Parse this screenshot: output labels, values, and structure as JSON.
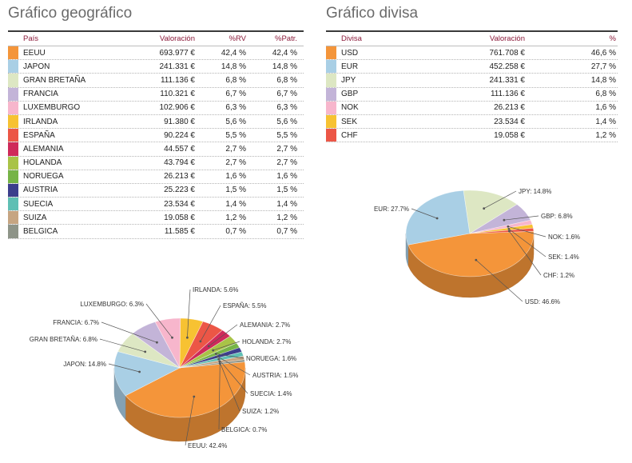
{
  "geo": {
    "title": "Gráfico geográfico",
    "headers": {
      "name": "País",
      "val": "Valoración",
      "rv": "%RV",
      "patr": "%Patr."
    },
    "rows": [
      {
        "name": "EEUU",
        "val": "693.977 €",
        "rv": "42,4 %",
        "patr": "42,4 %",
        "color": "#f4953a"
      },
      {
        "name": "JAPON",
        "val": "241.331 €",
        "rv": "14,8 %",
        "patr": "14,8 %",
        "color": "#a9cfe5"
      },
      {
        "name": "GRAN BRETAÑA",
        "val": "111.136 €",
        "rv": "6,8 %",
        "patr": "6,8 %",
        "color": "#dde7c3"
      },
      {
        "name": "FRANCIA",
        "val": "110.321 €",
        "rv": "6,7 %",
        "patr": "6,7 %",
        "color": "#c3b4d8"
      },
      {
        "name": "LUXEMBURGO",
        "val": "102.906 €",
        "rv": "6,3 %",
        "patr": "6,3 %",
        "color": "#f7b6cc"
      },
      {
        "name": "IRLANDA",
        "val": "91.380 €",
        "rv": "5,6 %",
        "patr": "5,6 %",
        "color": "#f7c232"
      },
      {
        "name": "ESPAÑA",
        "val": "90.224 €",
        "rv": "5,5 %",
        "patr": "5,5 %",
        "color": "#ec5646"
      },
      {
        "name": "ALEMANIA",
        "val": "44.557 €",
        "rv": "2,7 %",
        "patr": "2,7 %",
        "color": "#cf2a5a"
      },
      {
        "name": "HOLANDA",
        "val": "43.794 €",
        "rv": "2,7 %",
        "patr": "2,7 %",
        "color": "#a9c347"
      },
      {
        "name": "NORUEGA",
        "val": "26.213 €",
        "rv": "1,6 %",
        "patr": "1,6 %",
        "color": "#76b447"
      },
      {
        "name": "AUSTRIA",
        "val": "25.223 €",
        "rv": "1,5 %",
        "patr": "1,5 %",
        "color": "#3c3e8c"
      },
      {
        "name": "SUECIA",
        "val": "23.534 €",
        "rv": "1,4 %",
        "patr": "1,4 %",
        "color": "#5fbfb4"
      },
      {
        "name": "SUIZA",
        "val": "19.058 €",
        "rv": "1,2 %",
        "patr": "1,2 %",
        "color": "#c6a582"
      },
      {
        "name": "BELGICA",
        "val": "11.585 €",
        "rv": "0,7 %",
        "patr": "0,7 %",
        "color": "#8e9488"
      }
    ]
  },
  "div": {
    "title": "Gráfico divisa",
    "headers": {
      "name": "Divisa",
      "val": "Valoración",
      "pct": "%"
    },
    "rows": [
      {
        "name": "USD",
        "val": "761.708 €",
        "pct": "46,6 %",
        "color": "#f4953a"
      },
      {
        "name": "EUR",
        "val": "452.258 €",
        "pct": "27,7 %",
        "color": "#a9cfe5"
      },
      {
        "name": "JPY",
        "val": "241.331 €",
        "pct": "14,8 %",
        "color": "#dde7c3"
      },
      {
        "name": "GBP",
        "val": "111.136 €",
        "pct": "6,8 %",
        "color": "#c3b4d8"
      },
      {
        "name": "NOK",
        "val": "26.213 €",
        "pct": "1,6 %",
        "color": "#f7b6cc"
      },
      {
        "name": "SEK",
        "val": "23.534 €",
        "pct": "1,4 %",
        "color": "#f7c232"
      },
      {
        "name": "CHF",
        "val": "19.058 €",
        "pct": "1,2 %",
        "color": "#ec5646"
      }
    ]
  },
  "chart_data": [
    {
      "type": "pie",
      "labels": [
        "EEUU",
        "JAPON",
        "GRAN BRETAÑA",
        "FRANCIA",
        "LUXEMBURGO",
        "IRLANDA",
        "ESPAÑA",
        "ALEMANIA",
        "HOLANDA",
        "NORUEGA",
        "AUSTRIA",
        "SUECIA",
        "SUIZA",
        "BELGICA"
      ],
      "values": [
        42.4,
        14.8,
        6.8,
        6.7,
        6.3,
        5.6,
        5.5,
        2.7,
        2.7,
        1.6,
        1.5,
        1.4,
        1.2,
        0.7
      ],
      "data_labels": [
        "EEUU: 42.4%",
        "JAPON: 14.8%",
        "GRAN BRETAÑA: 6.8%",
        "FRANCIA: 6.7%",
        "LUXEMBURGO: 6.3%",
        "IRLANDA: 5.6%",
        "ESPAÑA: 5.5%",
        "ALEMANIA: 2.7%",
        "HOLANDA: 2.7%",
        "NORUEGA: 1.6%",
        "AUSTRIA: 1.5%",
        "SUECIA: 1.4%",
        "SUIZA: 1.2%",
        "BELGICA: 0.7%"
      ],
      "colors": [
        "#f4953a",
        "#a9cfe5",
        "#dde7c3",
        "#c3b4d8",
        "#f7b6cc",
        "#f7c232",
        "#ec5646",
        "#cf2a5a",
        "#a9c347",
        "#76b447",
        "#3c3e8c",
        "#5fbfb4",
        "#c6a582",
        "#8e9488"
      ]
    },
    {
      "type": "pie",
      "labels": [
        "USD",
        "EUR",
        "JPY",
        "GBP",
        "NOK",
        "SEK",
        "CHF"
      ],
      "values": [
        46.6,
        27.7,
        14.8,
        6.8,
        1.6,
        1.4,
        1.2
      ],
      "data_labels": [
        "USD: 46.6%",
        "EUR: 27.7%",
        "JPY: 14.8%",
        "GBP: 6.8%",
        "NOK: 1.6%",
        "SEK: 1.4%",
        "CHF: 1.2%"
      ],
      "colors": [
        "#f4953a",
        "#a9cfe5",
        "#dde7c3",
        "#c3b4d8",
        "#f7b6cc",
        "#f7c232",
        "#ec5646"
      ]
    }
  ]
}
